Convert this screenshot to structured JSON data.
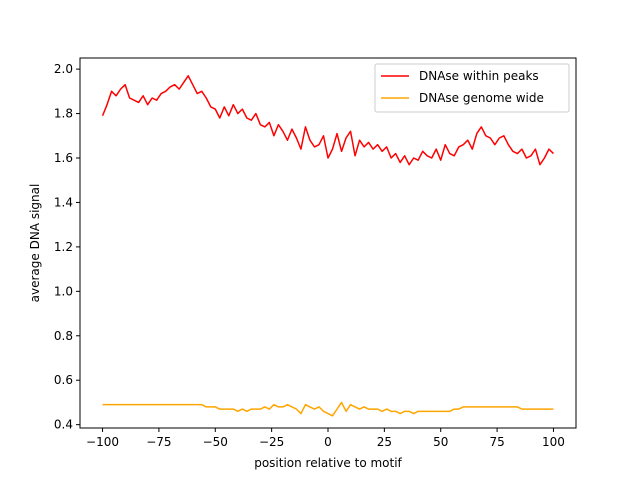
{
  "chart_data": {
    "type": "line",
    "title": "",
    "xlabel": "position relative to motif",
    "ylabel": "average DNA signal",
    "xlim": [
      -110,
      110
    ],
    "ylim": [
      0.385,
      2.05
    ],
    "xticks": [
      -100,
      -75,
      -50,
      -25,
      0,
      25,
      50,
      75,
      100
    ],
    "yticks": [
      0.4,
      0.6,
      0.8,
      1.0,
      1.2,
      1.4,
      1.6,
      1.8,
      2.0
    ],
    "xtick_labels": [
      "−100",
      "−75",
      "−50",
      "−25",
      "0",
      "25",
      "50",
      "75",
      "100"
    ],
    "ytick_labels": [
      "0.4",
      "0.6",
      "0.8",
      "1.0",
      "1.2",
      "1.4",
      "1.6",
      "1.8",
      "2.0"
    ],
    "grid": false,
    "legend_position": "top-right",
    "series": [
      {
        "name": "DNAse within peaks",
        "color": "#ff0000",
        "x": [
          -100,
          -98,
          -96,
          -94,
          -92,
          -90,
          -88,
          -86,
          -84,
          -82,
          -80,
          -78,
          -76,
          -74,
          -72,
          -70,
          -68,
          -66,
          -64,
          -62,
          -60,
          -58,
          -56,
          -54,
          -52,
          -50,
          -48,
          -46,
          -44,
          -42,
          -40,
          -38,
          -36,
          -34,
          -32,
          -30,
          -28,
          -26,
          -24,
          -22,
          -20,
          -18,
          -16,
          -14,
          -12,
          -10,
          -8,
          -6,
          -4,
          -2,
          0,
          2,
          4,
          6,
          8,
          10,
          12,
          14,
          16,
          18,
          20,
          22,
          24,
          26,
          28,
          30,
          32,
          34,
          36,
          38,
          40,
          42,
          44,
          46,
          48,
          50,
          52,
          54,
          56,
          58,
          60,
          62,
          64,
          66,
          68,
          70,
          72,
          74,
          76,
          78,
          80,
          82,
          84,
          86,
          88,
          90,
          92,
          94,
          96,
          98,
          100
        ],
        "y": [
          1.79,
          1.84,
          1.9,
          1.88,
          1.91,
          1.93,
          1.87,
          1.86,
          1.85,
          1.88,
          1.84,
          1.87,
          1.86,
          1.89,
          1.9,
          1.92,
          1.93,
          1.91,
          1.94,
          1.97,
          1.93,
          1.89,
          1.9,
          1.87,
          1.83,
          1.82,
          1.78,
          1.83,
          1.79,
          1.84,
          1.8,
          1.82,
          1.78,
          1.77,
          1.8,
          1.75,
          1.74,
          1.76,
          1.7,
          1.75,
          1.72,
          1.68,
          1.73,
          1.69,
          1.64,
          1.74,
          1.68,
          1.65,
          1.66,
          1.7,
          1.6,
          1.64,
          1.71,
          1.63,
          1.69,
          1.72,
          1.61,
          1.68,
          1.65,
          1.67,
          1.64,
          1.66,
          1.63,
          1.65,
          1.6,
          1.62,
          1.58,
          1.61,
          1.57,
          1.6,
          1.59,
          1.63,
          1.61,
          1.6,
          1.64,
          1.59,
          1.66,
          1.62,
          1.61,
          1.65,
          1.66,
          1.68,
          1.64,
          1.71,
          1.74,
          1.7,
          1.69,
          1.66,
          1.69,
          1.7,
          1.66,
          1.63,
          1.62,
          1.64,
          1.6,
          1.61,
          1.64,
          1.57,
          1.6,
          1.64,
          1.62
        ]
      },
      {
        "name": "DNAse genome wide",
        "color": "#ffa500",
        "x": [
          -100,
          -98,
          -96,
          -94,
          -92,
          -90,
          -88,
          -86,
          -84,
          -82,
          -80,
          -78,
          -76,
          -74,
          -72,
          -70,
          -68,
          -66,
          -64,
          -62,
          -60,
          -58,
          -56,
          -54,
          -52,
          -50,
          -48,
          -46,
          -44,
          -42,
          -40,
          -38,
          -36,
          -34,
          -32,
          -30,
          -28,
          -26,
          -24,
          -22,
          -20,
          -18,
          -16,
          -14,
          -12,
          -10,
          -8,
          -6,
          -4,
          -2,
          0,
          2,
          4,
          6,
          8,
          10,
          12,
          14,
          16,
          18,
          20,
          22,
          24,
          26,
          28,
          30,
          32,
          34,
          36,
          38,
          40,
          42,
          44,
          46,
          48,
          50,
          52,
          54,
          56,
          58,
          60,
          62,
          64,
          66,
          68,
          70,
          72,
          74,
          76,
          78,
          80,
          82,
          84,
          86,
          88,
          90,
          92,
          94,
          96,
          98,
          100
        ],
        "y": [
          0.49,
          0.49,
          0.49,
          0.49,
          0.49,
          0.49,
          0.49,
          0.49,
          0.49,
          0.49,
          0.49,
          0.49,
          0.49,
          0.49,
          0.49,
          0.49,
          0.49,
          0.49,
          0.49,
          0.49,
          0.49,
          0.49,
          0.49,
          0.48,
          0.48,
          0.48,
          0.47,
          0.47,
          0.47,
          0.47,
          0.46,
          0.47,
          0.46,
          0.47,
          0.47,
          0.47,
          0.48,
          0.47,
          0.49,
          0.48,
          0.48,
          0.49,
          0.48,
          0.47,
          0.45,
          0.49,
          0.48,
          0.47,
          0.48,
          0.46,
          0.45,
          0.44,
          0.47,
          0.5,
          0.46,
          0.49,
          0.48,
          0.47,
          0.48,
          0.47,
          0.47,
          0.47,
          0.46,
          0.47,
          0.46,
          0.46,
          0.45,
          0.46,
          0.46,
          0.45,
          0.46,
          0.46,
          0.46,
          0.46,
          0.46,
          0.46,
          0.46,
          0.46,
          0.47,
          0.47,
          0.48,
          0.48,
          0.48,
          0.48,
          0.48,
          0.48,
          0.48,
          0.48,
          0.48,
          0.48,
          0.48,
          0.48,
          0.48,
          0.47,
          0.47,
          0.47,
          0.47,
          0.47,
          0.47,
          0.47,
          0.47
        ]
      }
    ]
  }
}
